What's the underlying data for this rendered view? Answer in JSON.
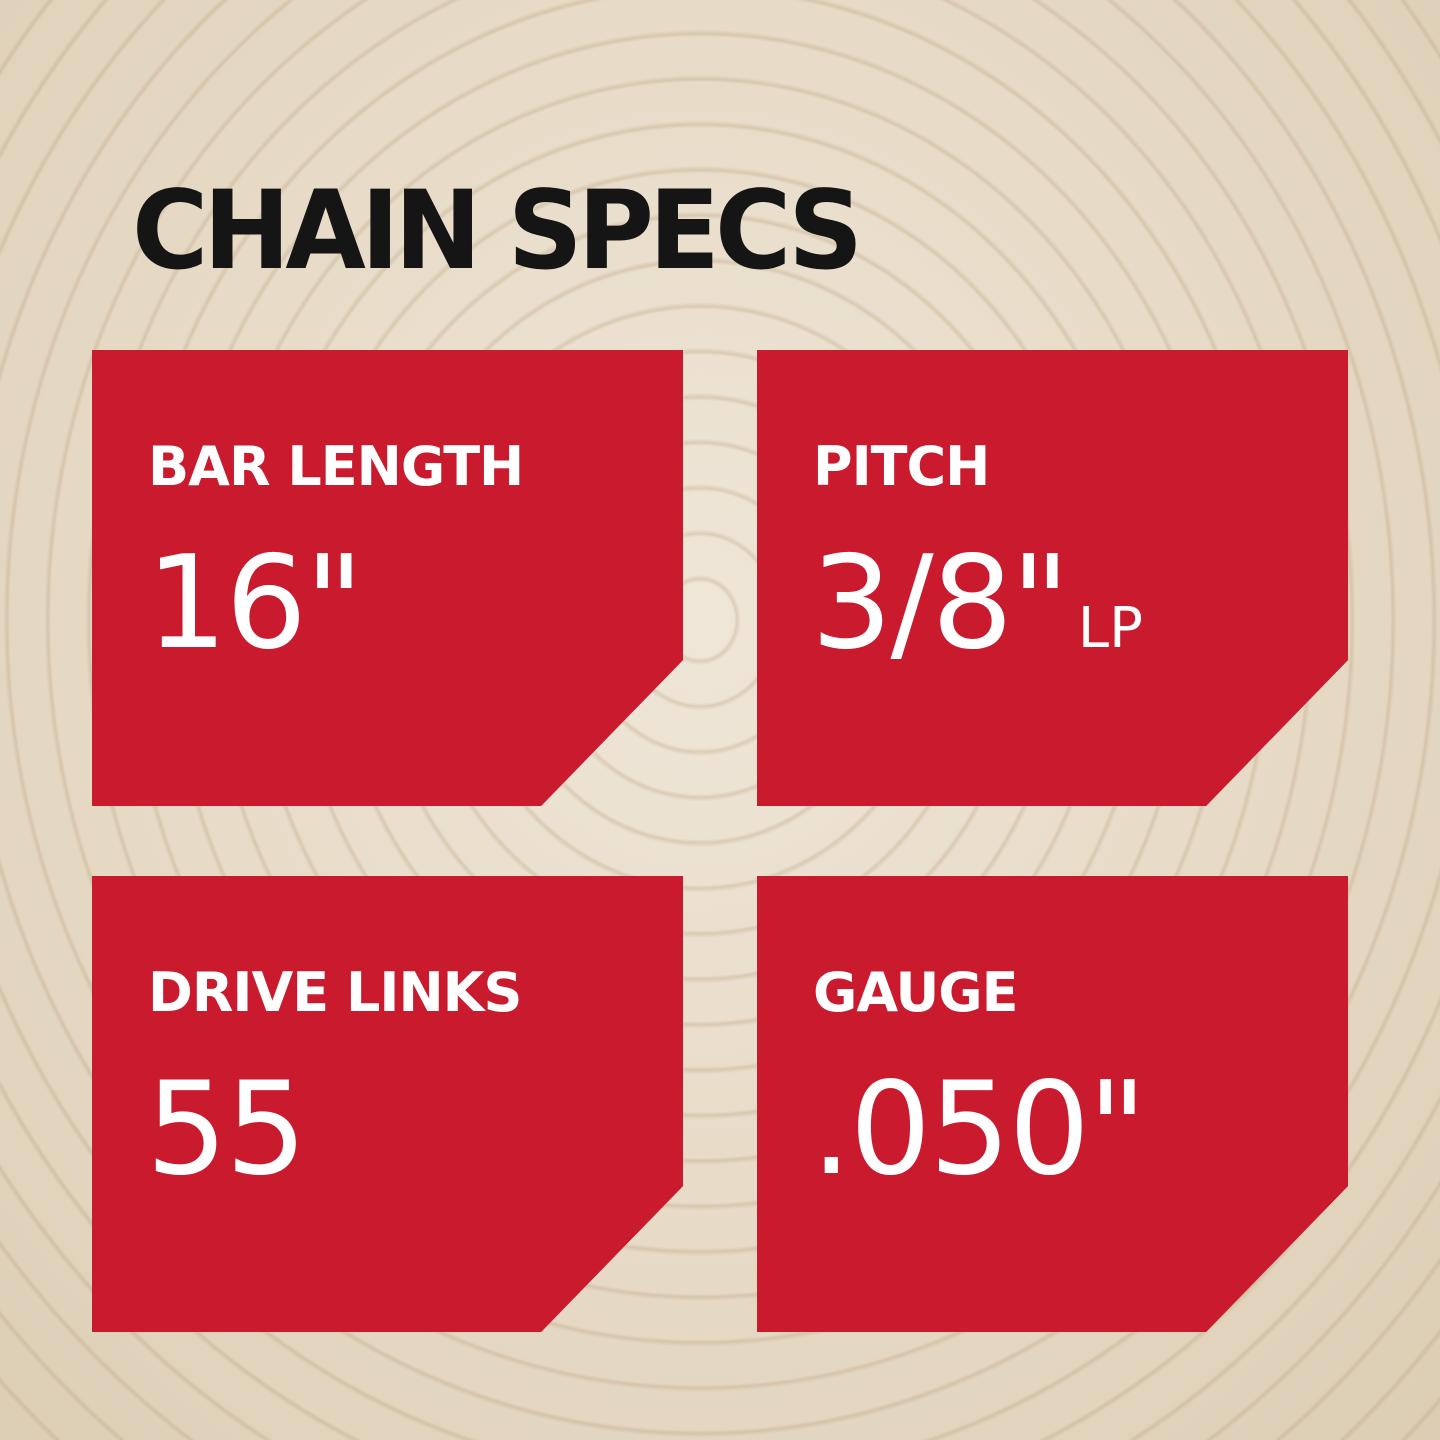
{
  "title": "CHAIN SPECS",
  "accent_color": "#c91a2e",
  "specs": [
    {
      "label": "BAR LENGTH",
      "value": "16\"",
      "suffix": ""
    },
    {
      "label": "PITCH",
      "value": "3/8\"",
      "suffix": "LP"
    },
    {
      "label": "DRIVE LINKS",
      "value": "55",
      "suffix": ""
    },
    {
      "label": "GAUGE",
      "value": ".050\"",
      "suffix": ""
    }
  ]
}
